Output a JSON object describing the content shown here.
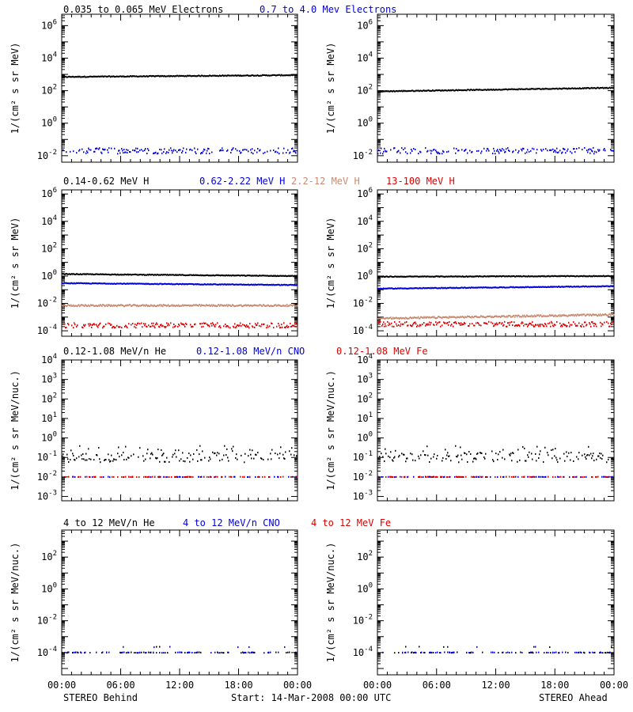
{
  "colors": {
    "black": "#000000",
    "blue": "#0000dd",
    "tan": "#c88a6e",
    "red": "#dd0000"
  },
  "footer": {
    "left": "STEREO Behind",
    "center": "Start: 14-Mar-2008 00:00 UTC",
    "right": "STEREO Ahead"
  },
  "rows": [
    {
      "titles": [
        {
          "text": "0.035 to 0.065 MeV Electrons",
          "color": "black"
        },
        {
          "text": "0.7 to 4.0 Mev Electrons",
          "color": "blue"
        }
      ],
      "ylabel": "1/(cm² s sr MeV)"
    },
    {
      "titles": [
        {
          "text": "0.14-0.62 MeV H",
          "color": "black"
        },
        {
          "text": "0.62-2.22 MeV H",
          "color": "blue"
        },
        {
          "text": "2.2-12 MeV H",
          "color": "tan"
        },
        {
          "text": "13-100 MeV H",
          "color": "red"
        }
      ],
      "ylabel": "1/(cm² s sr MeV)"
    },
    {
      "titles": [
        {
          "text": "0.12-1.08 MeV/n He",
          "color": "black"
        },
        {
          "text": "0.12-1.08 MeV/n CNO",
          "color": "blue"
        },
        {
          "text": "0.12-1.08 MeV Fe",
          "color": "red"
        }
      ],
      "ylabel": "1/(cm² s sr MeV/nuc.)"
    },
    {
      "titles": [
        {
          "text": "4 to 12 MeV/n He",
          "color": "black"
        },
        {
          "text": "4 to 12 MeV/n CNO",
          "color": "blue"
        },
        {
          "text": "4 to 12 MeV Fe",
          "color": "red"
        }
      ],
      "ylabel": "1/(cm² s sr MeV/nuc.)"
    }
  ],
  "chart_data": [
    {
      "type": "scatter",
      "panel": "STEREO Behind electrons",
      "yscale": "log",
      "ylim": [
        0.004,
        5000000
      ],
      "x_tick_labels": [
        "00:00",
        "06:00",
        "12:00",
        "18:00",
        "00:00"
      ],
      "yticks": [
        {
          "value": 0.01,
          "label": "10^-2"
        },
        {
          "value": 1,
          "label": "10^0"
        },
        {
          "value": 100,
          "label": "10^2"
        },
        {
          "value": 10000,
          "label": "10^4"
        },
        {
          "value": 1000000,
          "label": "10^6"
        }
      ],
      "series": [
        {
          "name": "0.035 to 0.065 MeV Electrons",
          "color": "black",
          "start": 700,
          "end": 900
        },
        {
          "name": "0.7 to 4.0 Mev Electrons",
          "color": "blue",
          "start": 0.02,
          "end": 0.02
        }
      ]
    },
    {
      "type": "scatter",
      "panel": "STEREO Ahead electrons",
      "yscale": "log",
      "ylim": [
        0.004,
        5000000
      ],
      "x_tick_labels": [
        "00:00",
        "06:00",
        "12:00",
        "18:00",
        "00:00"
      ],
      "yticks": [
        {
          "value": 0.01,
          "label": "10^-2"
        },
        {
          "value": 1,
          "label": "10^0"
        },
        {
          "value": 100,
          "label": "10^2"
        },
        {
          "value": 10000,
          "label": "10^4"
        },
        {
          "value": 1000000,
          "label": "10^6"
        }
      ],
      "series": [
        {
          "name": "0.035 to 0.065 MeV Electrons",
          "color": "black",
          "start": 90,
          "end": 150
        },
        {
          "name": "0.7 to 4.0 Mev Electrons",
          "color": "blue",
          "start": 0.02,
          "end": 0.02
        }
      ]
    },
    {
      "type": "scatter",
      "panel": "STEREO Behind protons",
      "yscale": "log",
      "ylim": [
        4e-05,
        2000000
      ],
      "x_tick_labels": [
        "00:00",
        "06:00",
        "12:00",
        "18:00",
        "00:00"
      ],
      "yticks": [
        {
          "value": 0.0001,
          "label": "10^-4"
        },
        {
          "value": 0.01,
          "label": "10^-2"
        },
        {
          "value": 1,
          "label": "10^0"
        },
        {
          "value": 100,
          "label": "10^2"
        },
        {
          "value": 10000,
          "label": "10^4"
        },
        {
          "value": 1000000,
          "label": "10^6"
        }
      ],
      "series": [
        {
          "name": "0.14-0.62 MeV H",
          "color": "black",
          "start": 1.4,
          "end": 1.0
        },
        {
          "name": "0.62-2.22 MeV H",
          "color": "blue",
          "start": 0.3,
          "end": 0.22
        },
        {
          "name": "2.2-12 MeV H",
          "color": "tan",
          "start": 0.007,
          "end": 0.007
        },
        {
          "name": "13-100 MeV H",
          "color": "red",
          "start": 0.00025,
          "end": 0.00025
        }
      ]
    },
    {
      "type": "scatter",
      "panel": "STEREO Ahead protons",
      "yscale": "log",
      "ylim": [
        4e-05,
        2000000
      ],
      "x_tick_labels": [
        "00:00",
        "06:00",
        "12:00",
        "18:00",
        "00:00"
      ],
      "yticks": [
        {
          "value": 0.0001,
          "label": "10^-4"
        },
        {
          "value": 0.01,
          "label": "10^-2"
        },
        {
          "value": 1,
          "label": "10^0"
        },
        {
          "value": 100,
          "label": "10^2"
        },
        {
          "value": 10000,
          "label": "10^4"
        },
        {
          "value": 1000000,
          "label": "10^6"
        }
      ],
      "series": [
        {
          "name": "0.14-0.62 MeV H",
          "color": "black",
          "start": 0.9,
          "end": 1.0
        },
        {
          "name": "0.62-2.22 MeV H",
          "color": "blue",
          "start": 0.12,
          "end": 0.18
        },
        {
          "name": "2.2-12 MeV H",
          "color": "tan",
          "start": 0.0008,
          "end": 0.0015
        },
        {
          "name": "13-100 MeV H",
          "color": "red",
          "start": 0.0003,
          "end": 0.0003
        }
      ]
    },
    {
      "type": "scatter",
      "panel": "STEREO Behind low-energy ions",
      "yscale": "log",
      "ylim": [
        0.0006,
        10000
      ],
      "x_tick_labels": [
        "00:00",
        "06:00",
        "12:00",
        "18:00",
        "00:00"
      ],
      "yticks": [
        {
          "value": 0.001,
          "label": "10^-3"
        },
        {
          "value": 0.01,
          "label": "10^-2"
        },
        {
          "value": 0.1,
          "label": "10^-1"
        },
        {
          "value": 1,
          "label": "10^0"
        },
        {
          "value": 10,
          "label": "10^1"
        },
        {
          "value": 100,
          "label": "10^2"
        },
        {
          "value": 1000,
          "label": "10^3"
        },
        {
          "value": 10000,
          "label": "10^4"
        }
      ],
      "series": [
        {
          "name": "0.12-1.08 MeV/n He",
          "color": "black",
          "start": 0.1,
          "end": 0.1
        },
        {
          "name": "0.12-1.08 MeV/n CNO",
          "color": "blue",
          "start": 0.01,
          "end": 0.01
        },
        {
          "name": "0.12-1.08 MeV Fe",
          "color": "red",
          "start": 0.01,
          "end": 0.01
        }
      ]
    },
    {
      "type": "scatter",
      "panel": "STEREO Ahead low-energy ions",
      "yscale": "log",
      "ylim": [
        0.0006,
        10000
      ],
      "x_tick_labels": [
        "00:00",
        "06:00",
        "12:00",
        "18:00",
        "00:00"
      ],
      "yticks": [
        {
          "value": 0.001,
          "label": "10^-3"
        },
        {
          "value": 0.01,
          "label": "10^-2"
        },
        {
          "value": 0.1,
          "label": "10^-1"
        },
        {
          "value": 1,
          "label": "10^0"
        },
        {
          "value": 10,
          "label": "10^1"
        },
        {
          "value": 100,
          "label": "10^2"
        },
        {
          "value": 1000,
          "label": "10^3"
        },
        {
          "value": 10000,
          "label": "10^4"
        }
      ],
      "series": [
        {
          "name": "0.12-1.08 MeV/n He",
          "color": "black",
          "start": 0.1,
          "end": 0.1
        },
        {
          "name": "0.12-1.08 MeV/n CNO",
          "color": "blue",
          "start": 0.01,
          "end": 0.01
        },
        {
          "name": "0.12-1.08 MeV Fe",
          "color": "red",
          "start": 0.01,
          "end": 0.01
        }
      ]
    },
    {
      "type": "scatter",
      "panel": "STEREO Behind high-energy ions",
      "yscale": "log",
      "ylim": [
        4e-06,
        5000
      ],
      "x_tick_labels": [
        "00:00",
        "06:00",
        "12:00",
        "18:00",
        "00:00"
      ],
      "yticks": [
        {
          "value": 0.0001,
          "label": "10^-4"
        },
        {
          "value": 0.01,
          "label": "10^-2"
        },
        {
          "value": 1,
          "label": "10^0"
        },
        {
          "value": 100,
          "label": "10^2"
        }
      ],
      "series": [
        {
          "name": "4 to 12 MeV/n He",
          "color": "black",
          "start": 0.0001,
          "end": 0.0001
        },
        {
          "name": "4 to 12 MeV/n CNO",
          "color": "blue",
          "start": 0.0001,
          "end": 0.0001
        }
      ]
    },
    {
      "type": "scatter",
      "panel": "STEREO Ahead high-energy ions",
      "yscale": "log",
      "ylim": [
        4e-06,
        5000
      ],
      "x_tick_labels": [
        "00:00",
        "06:00",
        "12:00",
        "18:00",
        "00:00"
      ],
      "yticks": [
        {
          "value": 0.0001,
          "label": "10^-4"
        },
        {
          "value": 0.01,
          "label": "10^-2"
        },
        {
          "value": 1,
          "label": "10^0"
        },
        {
          "value": 100,
          "label": "10^2"
        }
      ],
      "series": [
        {
          "name": "4 to 12 MeV/n He",
          "color": "black",
          "start": 0.0001,
          "end": 0.0001
        },
        {
          "name": "4 to 12 MeV/n CNO",
          "color": "blue",
          "start": 0.0001,
          "end": 0.0001
        }
      ]
    }
  ]
}
